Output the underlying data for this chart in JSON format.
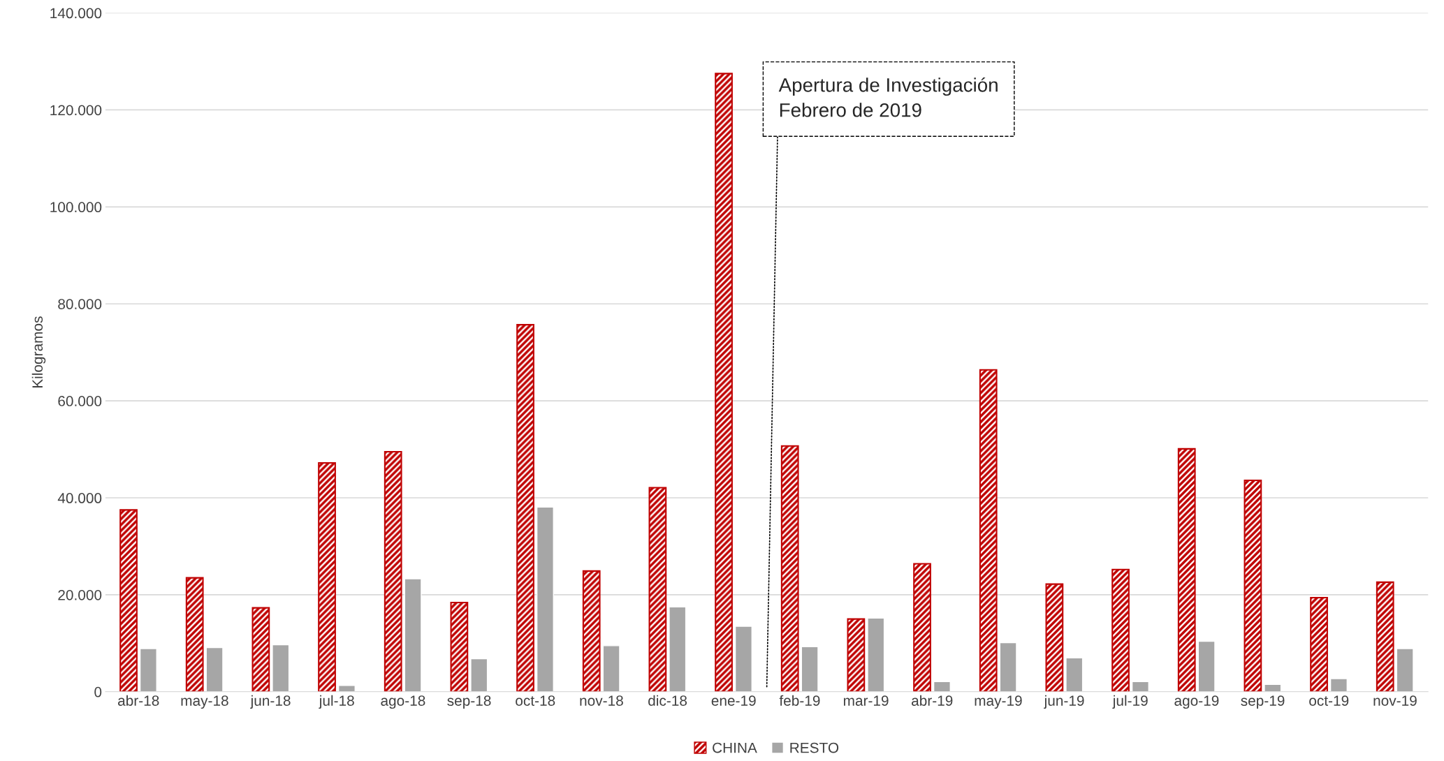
{
  "chart_data": {
    "type": "bar",
    "ylabel": "Kilogramos",
    "categories": [
      "abr-18",
      "may-18",
      "jun-18",
      "jul-18",
      "ago-18",
      "sep-18",
      "oct-18",
      "nov-18",
      "dic-18",
      "ene-19",
      "feb-19",
      "mar-19",
      "abr-19",
      "may-19",
      "jun-19",
      "jul-19",
      "ago-19",
      "sep-19",
      "oct-19",
      "nov-19"
    ],
    "series": [
      {
        "name": "CHINA",
        "color": "#c00000",
        "values": [
          37500,
          23500,
          17300,
          47200,
          49500,
          18400,
          75700,
          24900,
          42100,
          127500,
          50700,
          15000,
          26400,
          66400,
          22200,
          25200,
          50100,
          43600,
          19400,
          22600
        ]
      },
      {
        "name": "RESTO",
        "color": "#a6a6a6",
        "values": [
          8900,
          9100,
          9700,
          1300,
          23300,
          6800,
          38100,
          9500,
          17500,
          13500,
          9300,
          15200,
          2100,
          10100,
          7000,
          2100,
          10400,
          1500,
          2700,
          8900
        ]
      }
    ],
    "ylim": [
      0,
      140000
    ],
    "yticks": [
      0,
      {
        "value": 20000,
        "label": "20.000"
      },
      {
        "value": 40000,
        "label": "40.000"
      },
      {
        "value": 60000,
        "label": "60.000"
      },
      {
        "value": 80000,
        "label": "80.000"
      },
      {
        "value": 100000,
        "label": "100.000"
      },
      {
        "value": 120000,
        "label": "120.000"
      },
      {
        "value": 140000,
        "label": "140.000"
      }
    ],
    "annotations": [
      "Apertura de Investigación\nFebrero de 2019"
    ],
    "grid": "y",
    "legend": "bottom"
  }
}
